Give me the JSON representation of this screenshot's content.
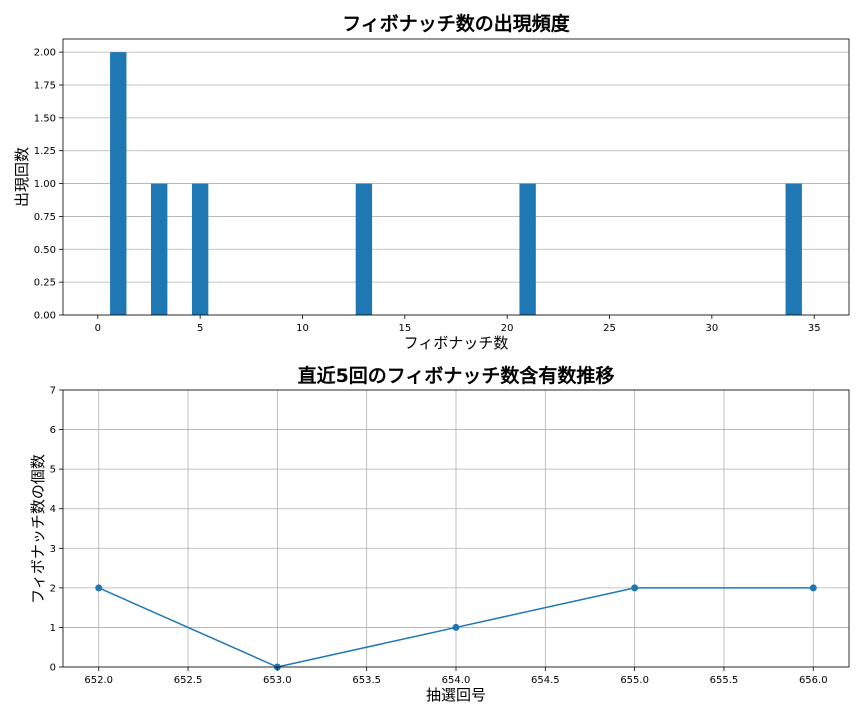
{
  "chart_data": [
    {
      "type": "bar",
      "title": "フィボナッチ数の出現頻度",
      "xlabel": "フィボナッチ数",
      "ylabel": "出現回数",
      "xlim": [
        -1.7,
        36.7
      ],
      "ylim": [
        0,
        2.1
      ],
      "xticks": [
        0,
        5,
        10,
        15,
        20,
        25,
        30,
        35
      ],
      "xtick_labels": [
        "0",
        "5",
        "10",
        "15",
        "20",
        "25",
        "30",
        "35"
      ],
      "yticks": [
        0,
        0.25,
        0.5,
        0.75,
        1.0,
        1.25,
        1.5,
        1.75,
        2.0
      ],
      "ytick_labels": [
        "0.00",
        "0.25",
        "0.50",
        "0.75",
        "1.00",
        "1.25",
        "1.50",
        "1.75",
        "2.00"
      ],
      "grid": "y",
      "bar_width": 0.8,
      "color": "#1f77b4",
      "x": [
        1,
        3,
        5,
        13,
        21,
        34
      ],
      "values": [
        2,
        1,
        1,
        1,
        1,
        1
      ]
    },
    {
      "type": "line",
      "title": "直近5回のフィボナッチ数含有数推移",
      "xlabel": "抽選回号",
      "ylabel": "フィボナッチ数の個数",
      "xlim": [
        651.8,
        656.2
      ],
      "ylim": [
        0,
        7
      ],
      "xticks": [
        652.0,
        652.5,
        653.0,
        653.5,
        654.0,
        654.5,
        655.0,
        655.5,
        656.0
      ],
      "xtick_labels": [
        "652.0",
        "652.5",
        "653.0",
        "653.5",
        "654.0",
        "654.5",
        "655.0",
        "655.5",
        "656.0"
      ],
      "yticks": [
        0,
        1,
        2,
        3,
        4,
        5,
        6,
        7
      ],
      "ytick_labels": [
        "0",
        "1",
        "2",
        "3",
        "4",
        "5",
        "6",
        "7"
      ],
      "grid": "both",
      "marker": "circle",
      "color": "#1f77b4",
      "x": [
        652,
        653,
        654,
        655,
        656
      ],
      "values": [
        2,
        0,
        1,
        2,
        2
      ]
    }
  ]
}
